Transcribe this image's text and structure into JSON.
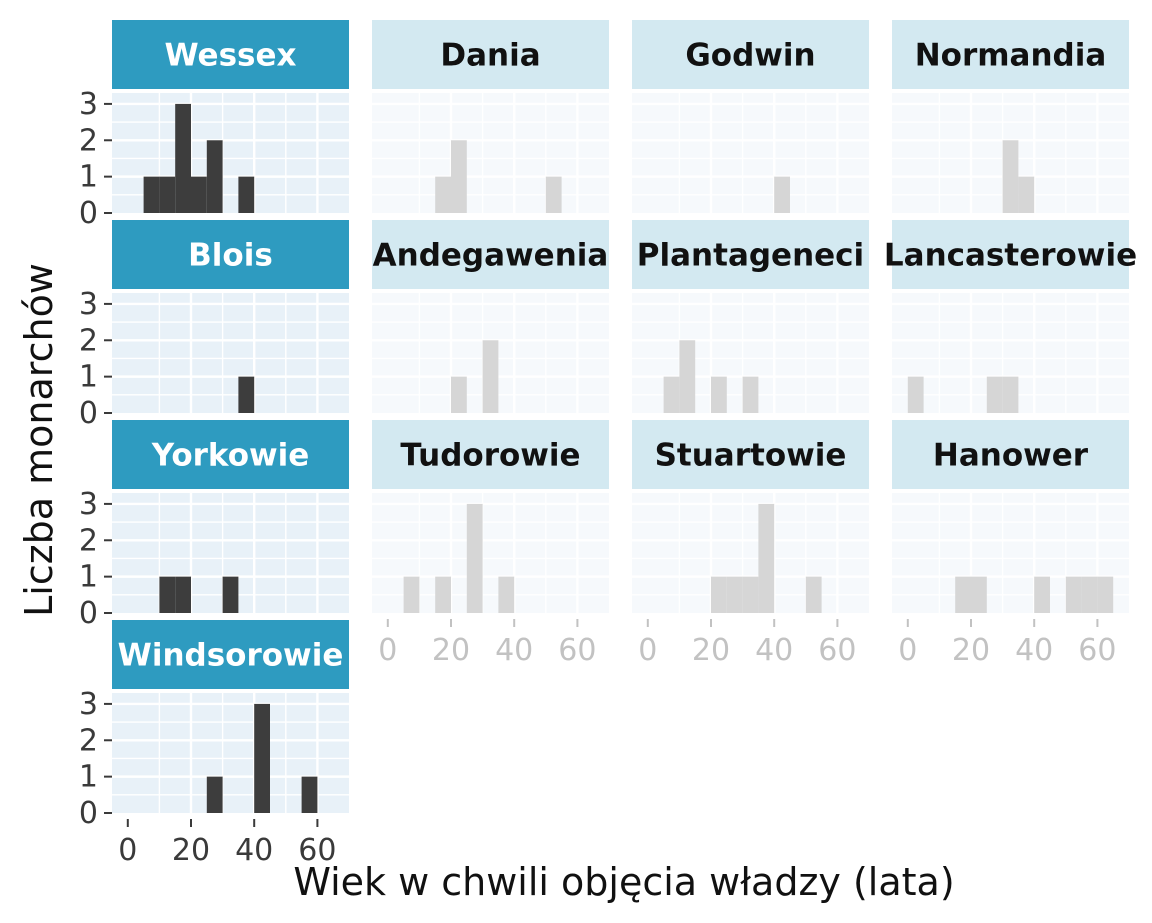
{
  "chart_data": {
    "type": "bar",
    "xlabel": "Wiek w chwili objęcia władzy (lata)",
    "ylabel": "Liczba monarchów",
    "xlim": [
      -5,
      70
    ],
    "ylim": [
      0,
      3.3
    ],
    "x_ticks": [
      0,
      20,
      40,
      60
    ],
    "y_ticks": [
      0,
      1,
      2,
      3
    ],
    "bin_width": 5,
    "colors": {
      "strip_highlight": "#2e9bc0",
      "strip_faded": "#d3e9f1",
      "bar_highlight": "#3d3d3d",
      "bar_faded": "#d6d6d6",
      "panel_highlight": "#e8f1f8",
      "panel_faded": "#f6f9fc",
      "tick_highlight": "#3a3a3a",
      "tick_faded": "#c2c2c2"
    },
    "panels": [
      {
        "name": "Wessex",
        "highlight": true,
        "bins": [
          [
            5,
            1
          ],
          [
            10,
            1
          ],
          [
            15,
            3
          ],
          [
            20,
            1
          ],
          [
            25,
            2
          ],
          [
            35,
            1
          ]
        ]
      },
      {
        "name": "Dania",
        "highlight": false,
        "bins": [
          [
            15,
            1
          ],
          [
            20,
            2
          ],
          [
            50,
            1
          ]
        ]
      },
      {
        "name": "Godwin",
        "highlight": false,
        "bins": [
          [
            40,
            1
          ]
        ]
      },
      {
        "name": "Normandia",
        "highlight": false,
        "bins": [
          [
            30,
            2
          ],
          [
            35,
            1
          ]
        ]
      },
      {
        "name": "Blois",
        "highlight": true,
        "bins": [
          [
            35,
            1
          ]
        ]
      },
      {
        "name": "Andegawenia",
        "highlight": false,
        "bins": [
          [
            20,
            1
          ],
          [
            30,
            2
          ]
        ]
      },
      {
        "name": "Plantageneci",
        "highlight": false,
        "bins": [
          [
            5,
            1
          ],
          [
            10,
            2
          ],
          [
            20,
            1
          ],
          [
            30,
            1
          ]
        ]
      },
      {
        "name": "Lancasterowie",
        "highlight": false,
        "bins": [
          [
            0,
            1
          ],
          [
            25,
            1
          ],
          [
            30,
            1
          ]
        ]
      },
      {
        "name": "Yorkowie",
        "highlight": true,
        "bins": [
          [
            10,
            1
          ],
          [
            15,
            1
          ],
          [
            30,
            1
          ]
        ]
      },
      {
        "name": "Tudorowie",
        "highlight": false,
        "bins": [
          [
            5,
            1
          ],
          [
            15,
            1
          ],
          [
            25,
            3
          ],
          [
            35,
            1
          ]
        ]
      },
      {
        "name": "Stuartowie",
        "highlight": false,
        "bins": [
          [
            20,
            1
          ],
          [
            25,
            1
          ],
          [
            30,
            1
          ],
          [
            35,
            3
          ],
          [
            50,
            1
          ]
        ]
      },
      {
        "name": "Hanower",
        "highlight": false,
        "bins": [
          [
            15,
            1
          ],
          [
            20,
            1
          ],
          [
            40,
            1
          ],
          [
            50,
            1
          ],
          [
            55,
            1
          ],
          [
            60,
            1
          ]
        ]
      },
      {
        "name": "Windsorowie",
        "highlight": true,
        "bins": [
          [
            25,
            1
          ],
          [
            40,
            3
          ],
          [
            55,
            1
          ]
        ]
      }
    ]
  }
}
